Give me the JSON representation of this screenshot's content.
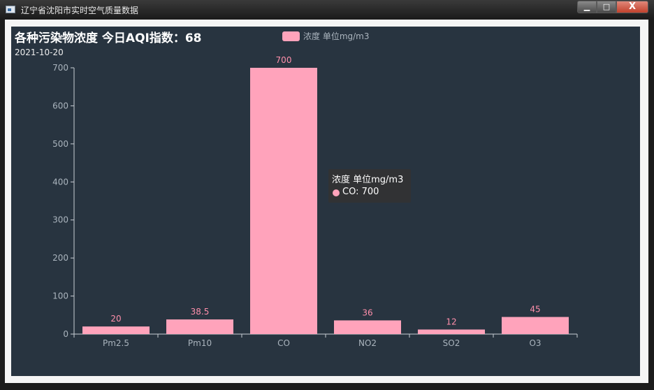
{
  "window": {
    "title": "辽宁省沈阳市实时空气质量数据",
    "minimize_glyph": "▁",
    "maximize_glyph": "□",
    "close_glyph": "X"
  },
  "colors": {
    "bar": "#ffa3bb",
    "label": "#ff8fab",
    "axis": "#c8ced4",
    "background": "#283440"
  },
  "chart_data": {
    "type": "bar",
    "title": "各种污染物浓度  今日AQI指数：68",
    "subtitle": "2021-10-20",
    "categories": [
      "Pm2.5",
      "Pm10",
      "CO",
      "NO2",
      "SO2",
      "O3"
    ],
    "series": [
      {
        "name": "浓度 单位mg/m3",
        "values": [
          20,
          38.5,
          700,
          36,
          12,
          45
        ]
      }
    ],
    "ylim": [
      0,
      700
    ],
    "yticks": [
      0,
      100,
      200,
      300,
      400,
      500,
      600,
      700
    ],
    "grid": false,
    "legend_position": "top-center",
    "data_labels": true
  },
  "tooltip": {
    "title": "浓度 单位mg/m3",
    "item": "CO: 700"
  }
}
